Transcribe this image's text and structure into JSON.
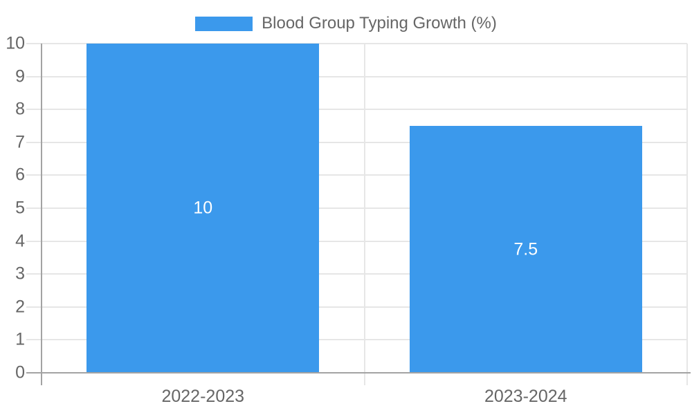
{
  "chart_data": {
    "type": "bar",
    "title": "Blood Group Typing Growth (%)",
    "categories": [
      "2022-2023",
      "2023-2024"
    ],
    "series": [
      {
        "name": "Blood Group Typing Growth (%)",
        "values": [
          10,
          7.5
        ],
        "color": "#3b99ec"
      }
    ],
    "bar_value_labels": [
      "10",
      "7.5"
    ],
    "xlabel": "",
    "ylabel": "",
    "ylim": [
      0,
      10
    ],
    "ytick_interval": 1,
    "yticks": [
      0,
      1,
      2,
      3,
      4,
      5,
      6,
      7,
      8,
      9,
      10
    ],
    "ytick_labels": [
      "0",
      "1",
      "2",
      "3",
      "4",
      "5",
      "6",
      "7",
      "8",
      "9",
      "10"
    ],
    "grid": true,
    "legend": {
      "position": "top",
      "entries": [
        "Blood Group Typing Growth (%)"
      ]
    },
    "colors": {
      "bar": "#3b99ec",
      "axis_text": "#666666",
      "bar_label_text": "#ffffff",
      "gridline": "#e6e6e6",
      "axis_line": "#a3a3a3",
      "background": "#ffffff"
    }
  }
}
